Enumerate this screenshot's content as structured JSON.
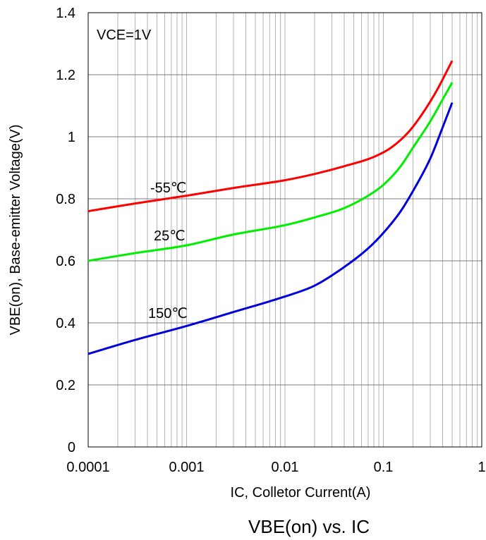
{
  "chart_data": {
    "type": "line",
    "title": "VBE(on) vs. IC",
    "xlabel": "IC, Colletor Current(A)",
    "ylabel": "VBE(on), Base-emitter Voltage(V)",
    "annotation": "VCE=1V",
    "x_scale": "log",
    "xlim": [
      0.0001,
      1
    ],
    "ylim": [
      0,
      1.4
    ],
    "x_ticks": [
      "0.0001",
      "0.001",
      "0.01",
      "0.1",
      "1"
    ],
    "y_ticks": [
      "0",
      "0.2",
      "0.4",
      "0.6",
      "0.8",
      "1",
      "1.2",
      "1.4"
    ],
    "grid": true,
    "series": [
      {
        "name": "-55℃",
        "color": "#ff0000",
        "x": [
          0.0001,
          0.0003,
          0.001,
          0.003,
          0.01,
          0.02,
          0.04,
          0.08,
          0.12,
          0.18,
          0.25,
          0.35,
          0.5
        ],
        "y": [
          0.76,
          0.785,
          0.81,
          0.835,
          0.86,
          0.88,
          0.905,
          0.935,
          0.965,
          1.015,
          1.075,
          1.15,
          1.245
        ]
      },
      {
        "name": "25℃",
        "color": "#00ee00",
        "x": [
          0.0001,
          0.0003,
          0.001,
          0.003,
          0.01,
          0.02,
          0.04,
          0.07,
          0.1,
          0.15,
          0.2,
          0.3,
          0.4,
          0.5
        ],
        "y": [
          0.6,
          0.625,
          0.65,
          0.685,
          0.715,
          0.74,
          0.77,
          0.81,
          0.845,
          0.905,
          0.965,
          1.05,
          1.12,
          1.175
        ]
      },
      {
        "name": "150℃",
        "color": "#0000dd",
        "x": [
          0.0001,
          0.0003,
          0.001,
          0.003,
          0.01,
          0.02,
          0.04,
          0.07,
          0.1,
          0.15,
          0.2,
          0.3,
          0.4,
          0.5
        ],
        "y": [
          0.3,
          0.345,
          0.39,
          0.435,
          0.485,
          0.52,
          0.58,
          0.64,
          0.69,
          0.76,
          0.825,
          0.93,
          1.03,
          1.11
        ]
      }
    ]
  }
}
